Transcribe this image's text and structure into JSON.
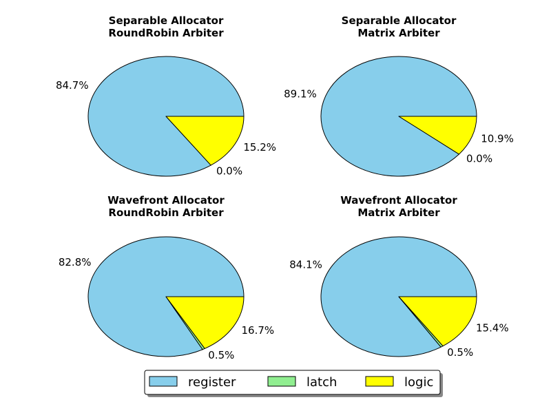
{
  "colors": {
    "register": "#87CEEB",
    "latch": "#90EE90",
    "logic": "#FFFF00",
    "stroke": "#000000"
  },
  "legend": {
    "items": [
      {
        "label": "register",
        "color_key": "register"
      },
      {
        "label": "latch",
        "color_key": "latch"
      },
      {
        "label": "logic",
        "color_key": "logic"
      }
    ]
  },
  "chart_data": [
    {
      "type": "pie",
      "title_lines": [
        "Separable Allocator",
        "RoundRobin Arbiter"
      ],
      "categories": [
        "register",
        "latch",
        "logic"
      ],
      "values": [
        84.7,
        0.0,
        15.2
      ],
      "labels": [
        "84.7%",
        "0.0%",
        "15.2%"
      ]
    },
    {
      "type": "pie",
      "title_lines": [
        "Separable Allocator",
        "Matrix Arbiter"
      ],
      "categories": [
        "register",
        "latch",
        "logic"
      ],
      "values": [
        89.1,
        0.0,
        10.9
      ],
      "labels": [
        "89.1%",
        "0.0%",
        "10.9%"
      ]
    },
    {
      "type": "pie",
      "title_lines": [
        "Wavefront Allocator",
        "RoundRobin Arbiter"
      ],
      "categories": [
        "register",
        "latch",
        "logic"
      ],
      "values": [
        82.8,
        0.5,
        16.7
      ],
      "labels": [
        "82.8%",
        "0.5%",
        "16.7%"
      ]
    },
    {
      "type": "pie",
      "title_lines": [
        "Wavefront Allocator",
        "Matrix Arbiter"
      ],
      "categories": [
        "register",
        "latch",
        "logic"
      ],
      "values": [
        84.1,
        0.5,
        15.4
      ],
      "labels": [
        "84.1%",
        "0.5%",
        "15.4%"
      ]
    }
  ]
}
